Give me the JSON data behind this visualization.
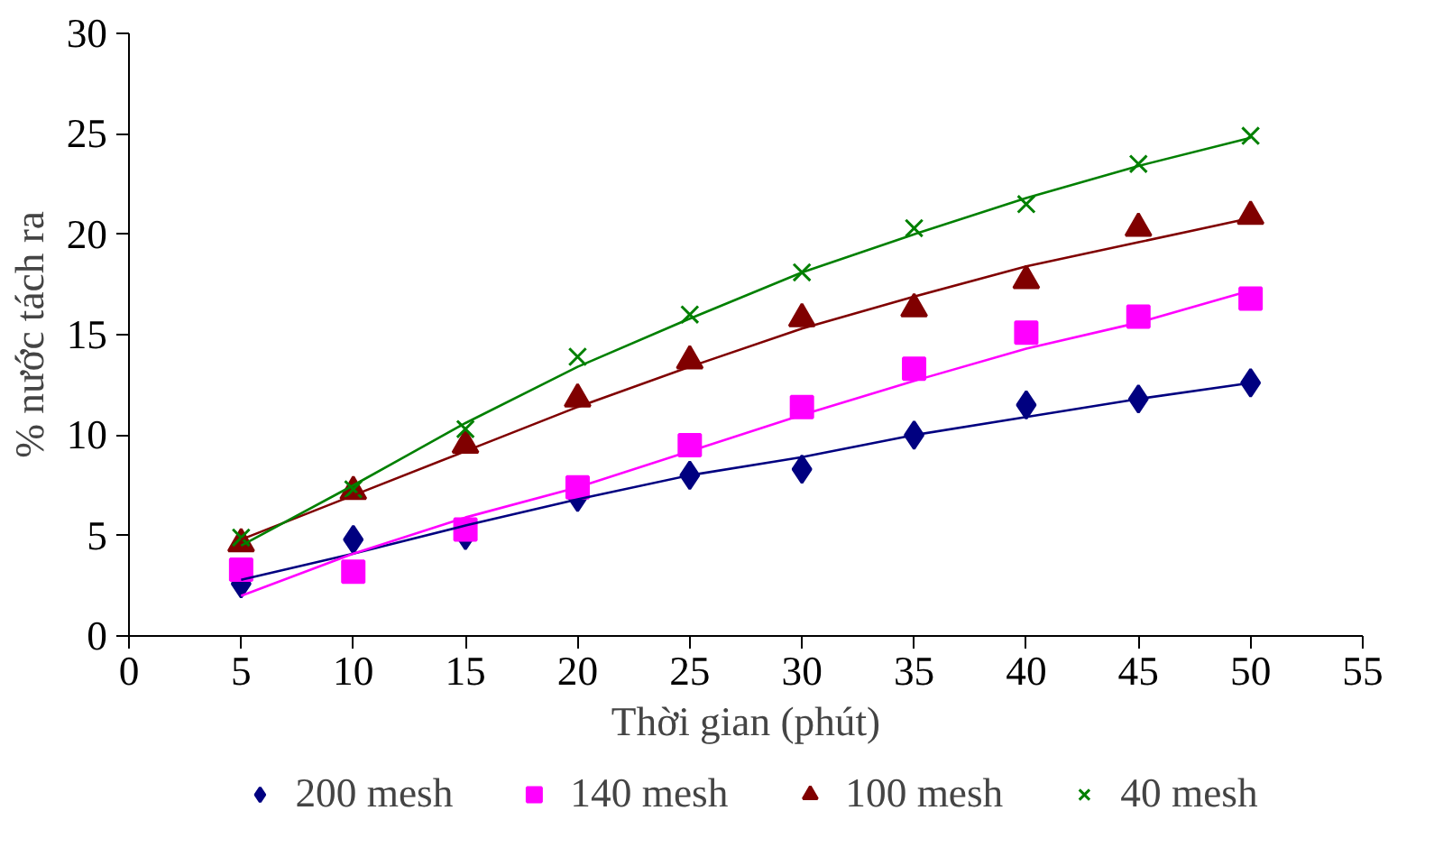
{
  "chart_data": {
    "type": "scatter",
    "xlabel": "Thời gian (phút)",
    "ylabel": "% nước tách ra",
    "x": [
      5,
      10,
      15,
      20,
      25,
      30,
      35,
      40,
      45,
      50
    ],
    "xlim": [
      0,
      55
    ],
    "xticks": [
      0,
      5,
      10,
      15,
      20,
      25,
      30,
      35,
      40,
      45,
      50,
      55
    ],
    "ylim": [
      0,
      30
    ],
    "yticks": [
      0,
      5,
      10,
      15,
      20,
      25,
      30
    ],
    "grid": false,
    "legend": "bottom",
    "series": [
      {
        "name": "200 mesh",
        "color": "#000080",
        "marker": "diamond",
        "values": [
          2.6,
          4.8,
          5.0,
          6.9,
          8.0,
          8.3,
          10.0,
          11.5,
          11.8,
          12.6
        ]
      },
      {
        "name": "140 mesh",
        "color": "#ff00ff",
        "marker": "square",
        "values": [
          3.3,
          3.2,
          5.3,
          7.4,
          9.5,
          11.4,
          13.3,
          15.1,
          15.9,
          16.8
        ]
      },
      {
        "name": "100 mesh",
        "color": "#800000",
        "marker": "triangle",
        "values": [
          4.6,
          7.2,
          9.5,
          11.8,
          13.7,
          15.8,
          16.3,
          17.7,
          20.3,
          20.9
        ]
      },
      {
        "name": "40 mesh",
        "color": "#008000",
        "marker": "cross",
        "values": [
          4.9,
          7.3,
          10.3,
          13.9,
          16.0,
          18.1,
          20.3,
          21.5,
          23.5,
          24.9
        ]
      },
      {
        "type": "line",
        "color": "#000080",
        "marker": "none",
        "x": [
          5,
          10,
          15,
          20,
          25,
          30,
          35,
          40,
          45,
          50
        ],
        "values": [
          2.8,
          4.1,
          5.5,
          6.8,
          8.0,
          8.9,
          10.0,
          10.9,
          11.8,
          12.6
        ]
      },
      {
        "type": "line",
        "color": "#ff00ff",
        "marker": "none",
        "x": [
          5,
          10,
          15,
          20,
          25,
          30,
          35,
          40,
          45,
          50
        ],
        "values": [
          2.0,
          4.1,
          5.9,
          7.4,
          9.2,
          11.0,
          12.7,
          14.3,
          15.6,
          17.2
        ]
      },
      {
        "type": "line",
        "color": "#800000",
        "marker": "none",
        "x": [
          5,
          10,
          15,
          20,
          25,
          30,
          35,
          40,
          45,
          50
        ],
        "values": [
          4.8,
          7.0,
          9.2,
          11.4,
          13.4,
          15.3,
          16.9,
          18.4,
          19.6,
          20.8
        ]
      },
      {
        "type": "line",
        "color": "#008000",
        "marker": "none",
        "x": [
          5,
          10,
          15,
          20,
          25,
          30,
          35,
          40,
          45,
          50
        ],
        "values": [
          4.5,
          7.5,
          10.6,
          13.4,
          15.8,
          18.1,
          20.0,
          21.8,
          23.4,
          24.8
        ]
      }
    ]
  }
}
